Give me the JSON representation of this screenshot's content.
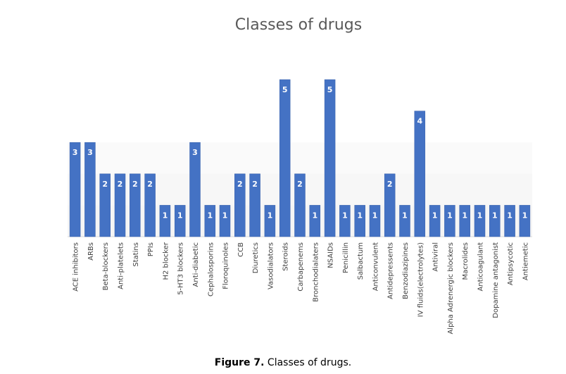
{
  "chart_data": {
    "type": "bar",
    "title": "Classes of drugs",
    "categories": [
      "ACE inhibitors",
      "ARBs",
      "Beta-blockers",
      "Anti-platelets",
      "Statins",
      "PPIs",
      "H2 blocker",
      "5-HT3 blockers",
      "Anti-diabetic",
      "Cephalosporins",
      "Floroquinoles",
      "CCB",
      "Diuretics",
      "Vasodialators",
      "Steroids",
      "Carbapenems",
      "Bronchodialaters",
      "NSAIDs",
      "Penicillin",
      "Salbactum",
      "Anticonvulent",
      "Antidepressents",
      "Benzodiazipines",
      "IV fluids(electrolytes)",
      "Antiviral",
      "Alpha Adrenergic blockers",
      "Macrolides",
      "Anticoagulant",
      "Dopamine antagonist",
      "Antipsycotic",
      "Antiemetic"
    ],
    "values": [
      3,
      3,
      2,
      2,
      2,
      2,
      1,
      1,
      3,
      1,
      1,
      2,
      2,
      1,
      5,
      2,
      1,
      5,
      1,
      1,
      1,
      2,
      1,
      4,
      1,
      1,
      1,
      1,
      1,
      1,
      1
    ],
    "data_labels": [
      "3",
      "3",
      "2",
      "2",
      "2",
      "2",
      "1",
      "1",
      "3",
      "1",
      "1",
      "2",
      "2",
      "1",
      "5",
      "2",
      "1",
      "5",
      "1",
      "1",
      "1",
      "2",
      "1",
      "4",
      "1",
      "1",
      "1",
      "1",
      "1",
      "1",
      "1"
    ],
    "ylim": [
      0,
      5
    ],
    "xlabel": "",
    "ylabel": "",
    "grid": false,
    "legend": "none",
    "colors": {
      "bar": "#4472c4",
      "bar_dark": "#3a62ab",
      "label": "#ffffff",
      "title": "#595959",
      "axis_text": "#3f3f3f",
      "band": "#ececec"
    }
  },
  "caption": {
    "label": "Figure 7.",
    "text": " Classes of drugs."
  }
}
